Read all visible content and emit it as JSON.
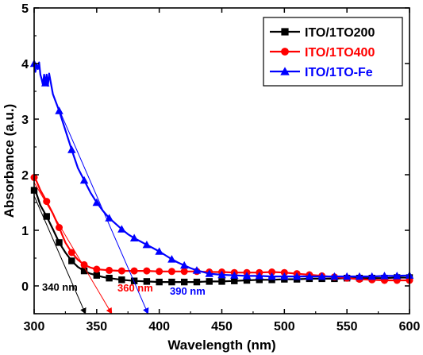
{
  "chart_data": {
    "type": "line",
    "xlabel": "Wavelength (nm)",
    "ylabel": "Absorbance (a.u.)",
    "xlim": [
      300,
      600
    ],
    "ylim": [
      -0.5,
      5
    ],
    "xticks": [
      300,
      350,
      400,
      450,
      500,
      550,
      600
    ],
    "yticks": [
      0,
      1,
      2,
      3,
      4,
      5
    ],
    "legend_position": "top-right",
    "series": [
      {
        "name": "ITO/1TO200",
        "color": "#000000",
        "marker": "square",
        "x": [
          300,
          302,
          305,
          310,
          315,
          320,
          325,
          330,
          335,
          340,
          345,
          350,
          355,
          360,
          370,
          380,
          390,
          400,
          410,
          420,
          430,
          440,
          450,
          460,
          470,
          480,
          490,
          500,
          510,
          520,
          530,
          540,
          550,
          560,
          570,
          580,
          590,
          600
        ],
        "y": [
          1.72,
          1.65,
          1.45,
          1.25,
          1.02,
          0.78,
          0.6,
          0.45,
          0.34,
          0.27,
          0.22,
          0.19,
          0.16,
          0.14,
          0.11,
          0.09,
          0.08,
          0.07,
          0.07,
          0.07,
          0.07,
          0.08,
          0.08,
          0.09,
          0.1,
          0.11,
          0.11,
          0.12,
          0.12,
          0.13,
          0.13,
          0.13,
          0.14,
          0.14,
          0.14,
          0.14,
          0.15,
          0.15
        ]
      },
      {
        "name": "ITO/1TO400",
        "color": "#ff0000",
        "marker": "circle",
        "x": [
          300,
          302,
          305,
          310,
          315,
          320,
          325,
          330,
          335,
          340,
          345,
          350,
          355,
          360,
          370,
          380,
          390,
          400,
          410,
          420,
          430,
          440,
          450,
          460,
          470,
          480,
          490,
          500,
          510,
          520,
          530,
          540,
          550,
          560,
          570,
          580,
          590,
          600
        ],
        "y": [
          1.95,
          1.88,
          1.72,
          1.52,
          1.3,
          1.05,
          0.78,
          0.6,
          0.47,
          0.38,
          0.33,
          0.3,
          0.29,
          0.28,
          0.27,
          0.27,
          0.27,
          0.26,
          0.26,
          0.26,
          0.26,
          0.25,
          0.25,
          0.24,
          0.24,
          0.24,
          0.25,
          0.24,
          0.22,
          0.2,
          0.18,
          0.16,
          0.14,
          0.12,
          0.11,
          0.1,
          0.1,
          0.1
        ]
      },
      {
        "name": "ITO/1TO-Fe",
        "color": "#0000ff",
        "marker": "triangle",
        "x": [
          300,
          301,
          302,
          303,
          304,
          305,
          306,
          307,
          308,
          309,
          310,
          311,
          312,
          315,
          320,
          325,
          330,
          335,
          340,
          345,
          350,
          355,
          360,
          365,
          370,
          375,
          380,
          385,
          390,
          395,
          400,
          405,
          410,
          415,
          420,
          425,
          430,
          440,
          450,
          460,
          470,
          480,
          490,
          500,
          510,
          520,
          530,
          540,
          550,
          560,
          570,
          580,
          590,
          600
        ],
        "y": [
          4.0,
          3.85,
          3.98,
          3.9,
          4.02,
          3.8,
          3.72,
          3.62,
          3.8,
          3.65,
          3.8,
          3.6,
          3.82,
          3.45,
          3.15,
          2.8,
          2.45,
          2.12,
          1.9,
          1.68,
          1.5,
          1.35,
          1.22,
          1.12,
          1.02,
          0.93,
          0.86,
          0.8,
          0.74,
          0.68,
          0.62,
          0.55,
          0.48,
          0.42,
          0.37,
          0.32,
          0.28,
          0.22,
          0.2,
          0.19,
          0.18,
          0.18,
          0.17,
          0.17,
          0.17,
          0.17,
          0.17,
          0.17,
          0.17,
          0.17,
          0.17,
          0.18,
          0.18,
          0.19
        ]
      }
    ],
    "tangent_lines": [
      {
        "color": "#000000",
        "from": [
          300,
          1.62
        ],
        "to": [
          341,
          -0.5
        ],
        "label": "340 nm"
      },
      {
        "color": "#ff0000",
        "from": [
          300,
          1.86
        ],
        "to": [
          362,
          -0.5
        ],
        "label": "360 nm"
      },
      {
        "color": "#0000ff",
        "from": [
          321,
          3.12
        ],
        "to": [
          391,
          -0.5
        ],
        "label": "390 nm"
      }
    ]
  }
}
